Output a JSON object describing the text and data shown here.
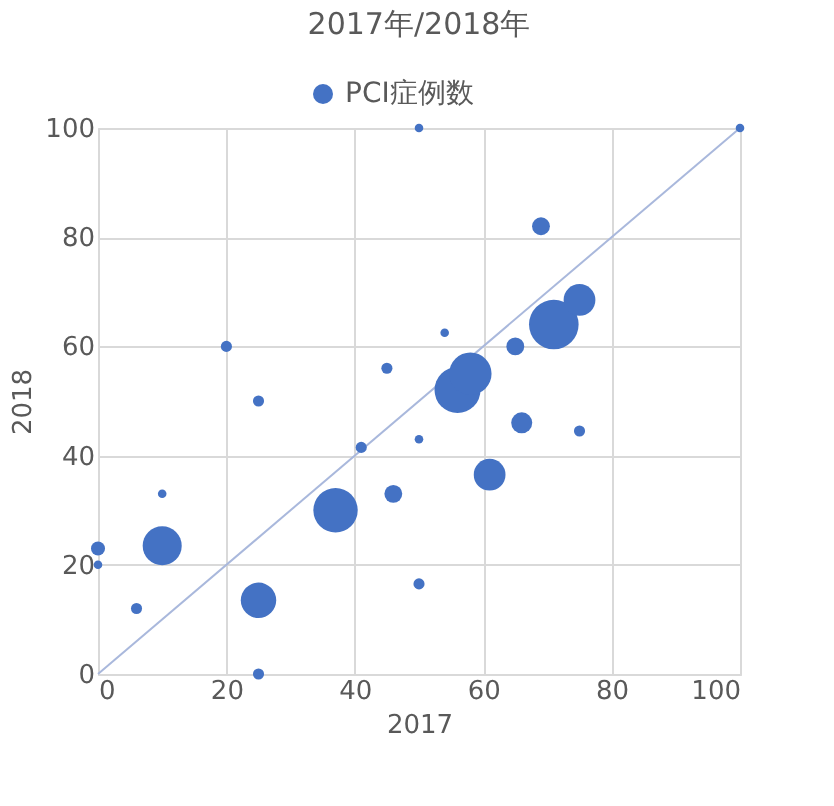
{
  "chart_data": {
    "type": "bubble",
    "title": "2017年/2018年",
    "xlabel": "2017",
    "ylabel": "2018",
    "xlim": [
      0,
      100
    ],
    "ylim": [
      0,
      100
    ],
    "xticks": [
      0,
      20,
      40,
      60,
      80,
      100
    ],
    "yticks": [
      0,
      20,
      40,
      60,
      80,
      100
    ],
    "grid": true,
    "legend": "top",
    "marker": "circle",
    "series": [
      {
        "name": "PCI症例数",
        "color": "#4472c4",
        "x": [
          0,
          0,
          6,
          10,
          10,
          20,
          25,
          25,
          25,
          37,
          41,
          45,
          46,
          50,
          50,
          50,
          54,
          56,
          58,
          61,
          65,
          66,
          69,
          71,
          75,
          75,
          100
        ],
        "values": [
          23,
          20,
          12,
          23.5,
          33,
          60,
          50,
          13.5,
          0,
          30,
          41.5,
          56,
          33,
          100,
          43,
          16.5,
          62.5,
          52,
          55,
          36.5,
          60,
          46,
          82,
          64,
          68.5,
          44.5,
          100
        ],
        "sizes": [
          0.08,
          0.03,
          0.05,
          0.62,
          0.03,
          0.05,
          0.05,
          0.51,
          0.05,
          0.8,
          0.05,
          0.05,
          0.13,
          0.03,
          0.03,
          0.05,
          0.03,
          0.86,
          0.73,
          0.41,
          0.13,
          0.18,
          0.13,
          1,
          0.41,
          0.05,
          0.03
        ]
      },
      {
        "color": "#a9b8dc",
        "type": "line",
        "marker": "none",
        "line_style": "solid",
        "x": [
          0,
          100
        ],
        "values": [
          0,
          100
        ]
      }
    ]
  }
}
